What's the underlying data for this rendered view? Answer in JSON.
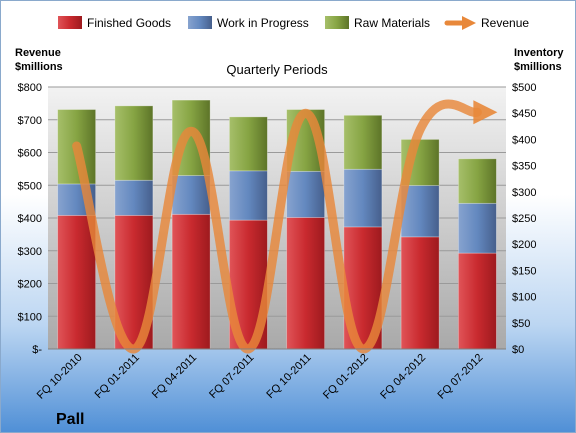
{
  "chart_data": {
    "type": "bar",
    "stacked": true,
    "title": "Quarterly Periods",
    "company": "Pall",
    "categories": [
      "FQ 10-2010",
      "FQ 01-2011",
      "FQ 04-2011",
      "FQ 07-2011",
      "FQ 10-2011",
      "FQ 01-2012",
      "FQ 04-2012",
      "FQ 07-2012"
    ],
    "left_axis": {
      "label_line1": "Revenue",
      "label_line2": "$millions",
      "range": [
        0,
        800
      ],
      "ticks": [
        "$-",
        "$100",
        "$200",
        "$300",
        "$400",
        "$500",
        "$600",
        "$700",
        "$800"
      ]
    },
    "right_axis": {
      "label_line1": "Inventory",
      "label_line2": "$millions",
      "range": [
        0,
        500
      ],
      "ticks": [
        "$0",
        "$50",
        "$100",
        "$150",
        "$200",
        "$250",
        "$300",
        "$350",
        "$400",
        "$450",
        "$500"
      ]
    },
    "series": [
      {
        "name": "Finished Goods",
        "axis": "right",
        "color": "#c0282d",
        "values": [
          255,
          255,
          257,
          246,
          251,
          233,
          214,
          183
        ]
      },
      {
        "name": "Work in Progress",
        "axis": "right",
        "color": "#5b7fb8",
        "values": [
          60,
          67,
          74,
          94,
          88,
          110,
          98,
          95
        ]
      },
      {
        "name": "Raw Materials",
        "axis": "right",
        "color": "#7e9a3c",
        "values": [
          142,
          142,
          144,
          103,
          118,
          103,
          88,
          85
        ]
      }
    ],
    "line_series": {
      "name": "Revenue",
      "axis": "left",
      "color": "#e8883a",
      "values": [
        620,
        0,
        665,
        0,
        720,
        0,
        670,
        723
      ]
    },
    "legend_position": "top",
    "grid": true
  }
}
